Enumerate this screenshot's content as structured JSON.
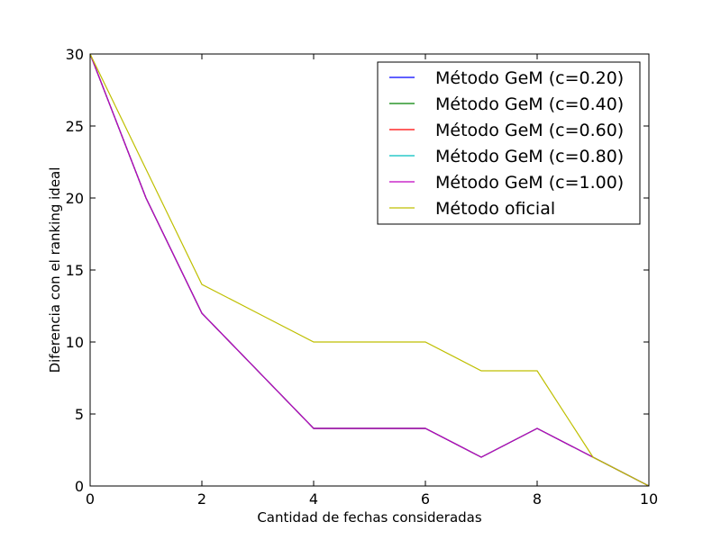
{
  "chart_data": {
    "type": "line",
    "title": "",
    "xlabel": "Cantidad de fechas consideradas",
    "ylabel": "Diferencia con el ranking ideal",
    "xlim": [
      0,
      10
    ],
    "ylim": [
      0,
      30
    ],
    "xticks": [
      "0",
      "2",
      "4",
      "6",
      "8",
      "10"
    ],
    "yticks": [
      "0",
      "5",
      "10",
      "15",
      "20",
      "25",
      "30"
    ],
    "grid": false,
    "legend_position": "top-right",
    "x": [
      0,
      1,
      2,
      3,
      4,
      5,
      6,
      7,
      8,
      9,
      10
    ],
    "series": [
      {
        "name": "Método GeM (c=0.20)",
        "color": "#0000ff",
        "values": [
          30,
          20,
          12,
          8,
          4,
          4,
          4,
          2,
          4,
          2,
          0
        ]
      },
      {
        "name": "Método GeM (c=0.40)",
        "color": "#008000",
        "values": [
          30,
          20,
          12,
          8,
          4,
          4,
          4,
          2,
          4,
          2,
          0
        ]
      },
      {
        "name": "Método GeM (c=0.60)",
        "color": "#ff0000",
        "values": [
          30,
          20,
          12,
          8,
          4,
          4,
          4,
          2,
          4,
          2,
          0
        ]
      },
      {
        "name": "Método GeM (c=0.80)",
        "color": "#00bfbf",
        "values": [
          30,
          20,
          12,
          8,
          4,
          4,
          4,
          2,
          4,
          2,
          0
        ]
      },
      {
        "name": "Método GeM (c=1.00)",
        "color": "#bf00bf",
        "values": [
          30,
          20,
          12,
          8,
          4,
          4,
          4,
          2,
          4,
          2,
          0
        ]
      },
      {
        "name": "Método oficial",
        "color": "#bfbf00",
        "values": [
          30,
          22,
          14,
          12,
          10,
          10,
          10,
          8,
          8,
          2,
          0
        ]
      }
    ]
  }
}
